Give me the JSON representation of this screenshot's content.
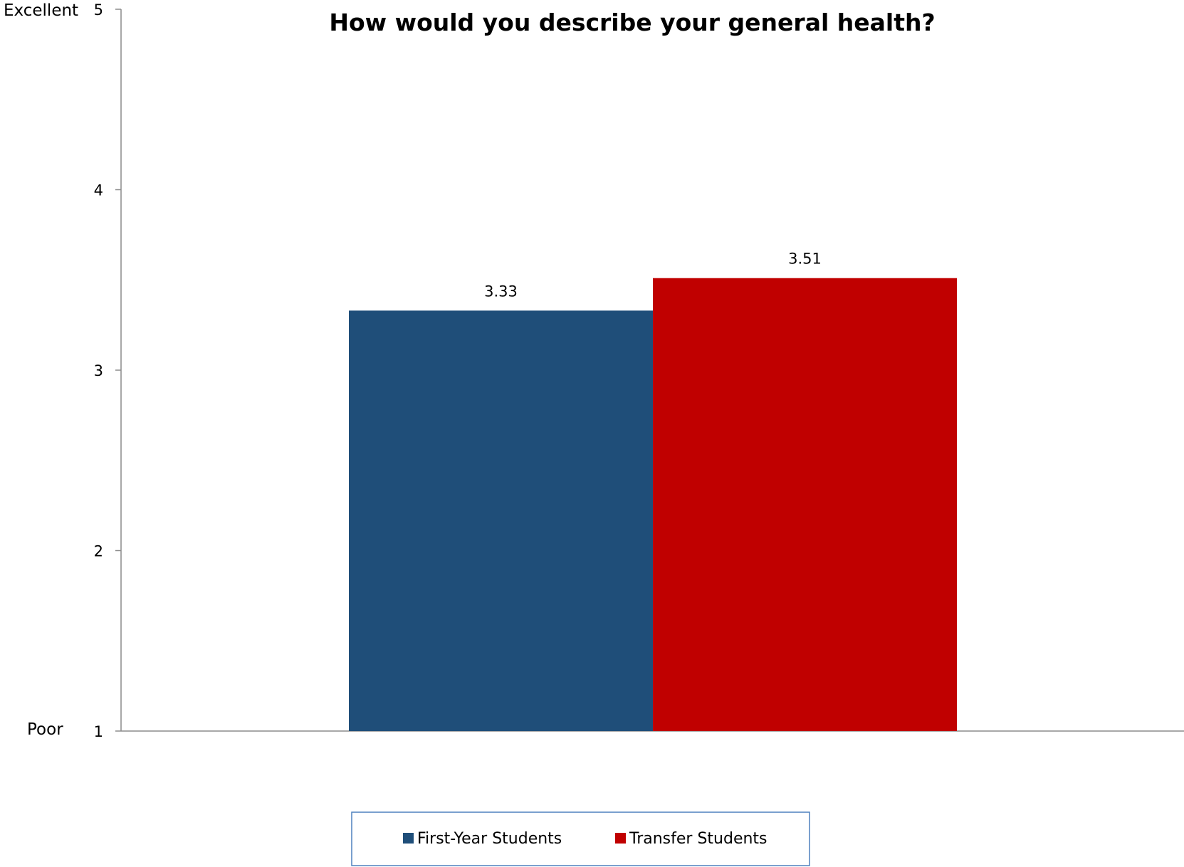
{
  "chart_data": {
    "type": "bar",
    "title": "How would you describe your general health?",
    "categories": [
      ""
    ],
    "series": [
      {
        "name": "First-Year Students",
        "values": [
          3.33
        ],
        "color": "#1F4E79"
      },
      {
        "name": "Transfer Students",
        "values": [
          3.51
        ],
        "color": "#C00000"
      }
    ],
    "data_labels": [
      "3.33",
      "3.51"
    ],
    "ylim": [
      1,
      5
    ],
    "yticks": [
      1,
      2,
      3,
      4,
      5
    ],
    "ytick_labels": [
      "1",
      "2",
      "3",
      "4",
      "5"
    ],
    "y_anchor_labels": {
      "top": "Excellent",
      "bottom": "Poor"
    },
    "xlabel": "",
    "ylabel": "",
    "grid": false,
    "legend_position": "bottom"
  }
}
